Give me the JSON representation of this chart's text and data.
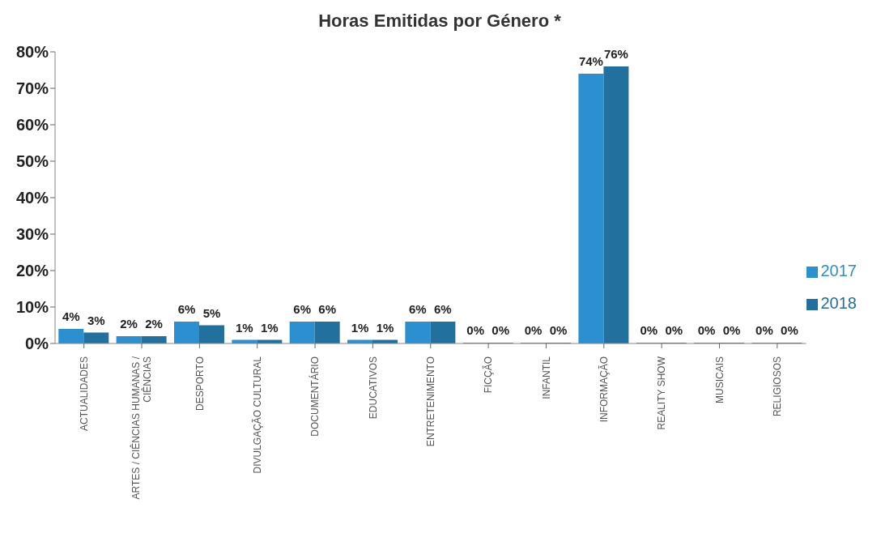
{
  "chart_data": {
    "type": "bar",
    "title": "Horas Emitidas por Género *",
    "categories": [
      "ACTUALIDADES",
      "ARTES / CIÊNCIAS HUMANAS / CIÊNCIAS",
      "DESPORTO",
      "DIVULGAÇÃO CULTURAL",
      "DOCUMENTÁRIO",
      "EDUCATIVOS",
      "ENTRETENIMENTO",
      "FICÇÃO",
      "INFANTIL",
      "INFORMAÇÃO",
      "REALITY SHOW",
      "MUSICAIS",
      "RELIGIOSOS"
    ],
    "series": [
      {
        "name": "2017",
        "color": "#2b8fd0",
        "values": [
          4,
          2,
          6,
          1,
          6,
          1,
          6,
          0,
          0,
          74,
          0,
          0,
          0
        ],
        "value_labels": [
          "4%",
          "2%",
          "6%",
          "1%",
          "6%",
          "1%",
          "6%",
          "0%",
          "0%",
          "74%",
          "0%",
          "0%",
          "0%"
        ]
      },
      {
        "name": "2018",
        "color": "#22709e",
        "values": [
          3,
          2,
          5,
          1,
          6,
          1,
          6,
          0,
          0,
          76,
          0,
          0,
          0
        ],
        "value_labels": [
          "3%",
          "2%",
          "5%",
          "1%",
          "6%",
          "1%",
          "6%",
          "0%",
          "0%",
          "76%",
          "0%",
          "0%",
          "0%"
        ]
      }
    ],
    "ylim": [
      0,
      80
    ],
    "yticks": [
      {
        "value": 0,
        "label": "0%"
      },
      {
        "value": 10,
        "label": "10%"
      },
      {
        "value": 20,
        "label": "20%"
      },
      {
        "value": 30,
        "label": "30%"
      },
      {
        "value": 40,
        "label": "40%"
      },
      {
        "value": 50,
        "label": "50%"
      },
      {
        "value": 60,
        "label": "60%"
      },
      {
        "value": 70,
        "label": "70%"
      },
      {
        "value": 80,
        "label": "80%"
      }
    ],
    "legend": "right"
  }
}
